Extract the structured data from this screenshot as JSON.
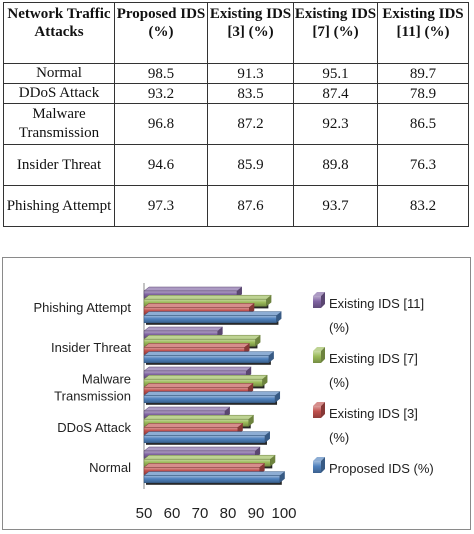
{
  "table": {
    "headers": [
      "Network Traffic Attacks",
      "Proposed IDS (%)",
      "Existing IDS [3] (%)",
      "Existing IDS [7] (%)",
      "Existing IDS [11] (%)"
    ],
    "rows": [
      {
        "attack": "Normal",
        "values": [
          "98.5",
          "91.3",
          "95.1",
          "89.7"
        ]
      },
      {
        "attack": "DDoS Attack",
        "values": [
          "93.2",
          "83.5",
          "87.4",
          "78.9"
        ]
      },
      {
        "attack": "Malware Transmission",
        "values": [
          "96.8",
          "87.2",
          "92.3",
          "86.5"
        ]
      },
      {
        "attack": "Insider Threat",
        "values": [
          "94.6",
          "85.9",
          "89.8",
          "76.3"
        ]
      },
      {
        "attack": "Phishing Attempt",
        "values": [
          "97.3",
          "87.6",
          "93.7",
          "83.2"
        ]
      }
    ]
  },
  "chart_data": {
    "type": "bar",
    "orientation": "horizontal",
    "style": "3d",
    "categories": [
      "Normal",
      "DDoS Attack",
      "Malware Transmission",
      "Insider Threat",
      "Phishing Attempt"
    ],
    "series": [
      {
        "name": "Proposed IDS (%)",
        "values": [
          98.5,
          93.2,
          96.8,
          94.6,
          97.3
        ],
        "color": "#4f81bd"
      },
      {
        "name": "Existing IDS [3] (%)",
        "values": [
          91.3,
          83.5,
          87.2,
          85.9,
          87.6
        ],
        "color": "#c0504d"
      },
      {
        "name": "Existing IDS [7] (%)",
        "values": [
          95.1,
          87.4,
          92.3,
          89.8,
          93.7
        ],
        "color": "#9bbb59"
      },
      {
        "name": "Existing IDS [11] (%)",
        "values": [
          89.7,
          78.9,
          86.5,
          76.3,
          83.2
        ],
        "color": "#8064a2"
      }
    ],
    "xlim": [
      50,
      100
    ],
    "xticks": [
      "50",
      "60",
      "70",
      "80",
      "90",
      "100"
    ],
    "legend_position": "right",
    "legend_order": [
      "Existing IDS [11] (%)",
      "Existing IDS [7] (%)",
      "Existing IDS [3] (%)",
      "Proposed IDS (%)"
    ],
    "grid": false
  }
}
